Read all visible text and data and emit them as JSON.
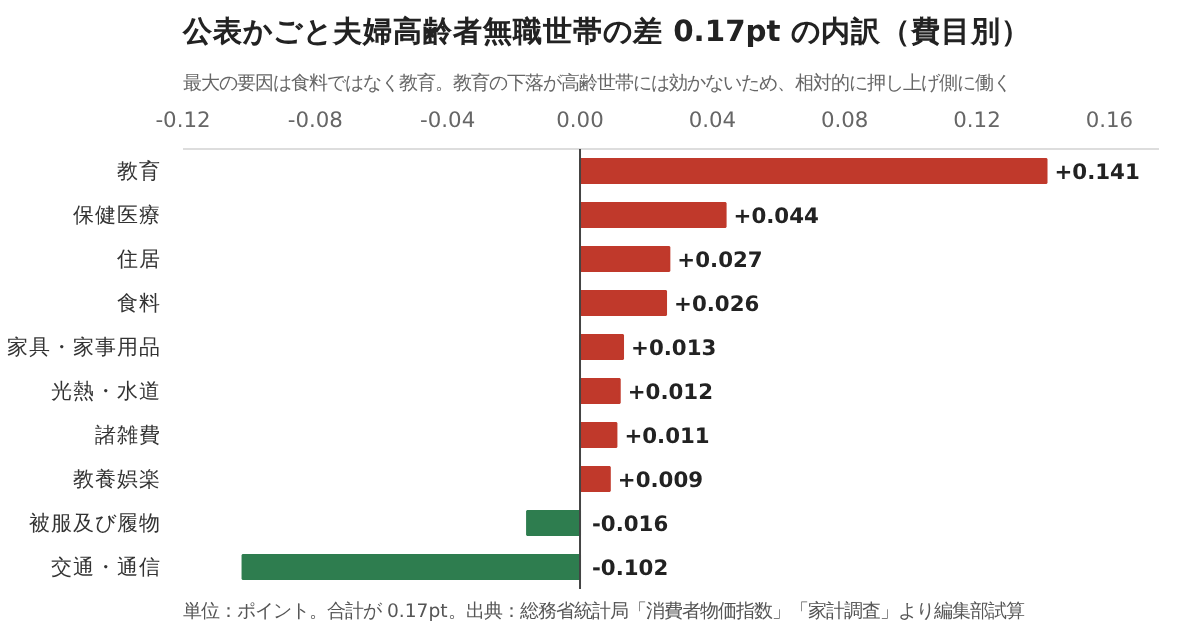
{
  "chart_data": {
    "type": "bar",
    "orientation": "horizontal",
    "title": "公表かごと夫婦高齢者無職世帯の差 0.17pt の内訳（費目別）",
    "subtitle": "最大の要因は食料ではなく教育。教育の下落が高齢世帯には効かないため、相対的に押し上げ側に働く",
    "categories": [
      "教育",
      "保健医療",
      "住居",
      "食料",
      "家具・家事用品",
      "光熱・水道",
      "諸雑費",
      "教養娯楽",
      "被服及び履物",
      "交通・通信"
    ],
    "values": [
      0.141,
      0.044,
      0.027,
      0.026,
      0.013,
      0.012,
      0.011,
      0.009,
      -0.016,
      -0.102
    ],
    "colors": [
      "#c0392b",
      "#c0392b",
      "#c0392b",
      "#c0392b",
      "#c0392b",
      "#c0392b",
      "#c0392b",
      "#c0392b",
      "#2e7d4f",
      "#2e7d4f"
    ],
    "value_labels": [
      "+0.141",
      "+0.044",
      "+0.027",
      "+0.026",
      "+0.013",
      "+0.012",
      "+0.011",
      "+0.009",
      "-0.016",
      "-0.102"
    ],
    "xlim": [
      -0.12,
      0.175
    ],
    "xticks": [
      {
        "value": -0.12,
        "label": "-0.12"
      },
      {
        "value": -0.08,
        "label": "-0.08"
      },
      {
        "value": -0.04,
        "label": "-0.04"
      },
      {
        "value": 0,
        "label": "0.00"
      },
      {
        "value": 0.04,
        "label": "0.04"
      },
      {
        "value": 0.08,
        "label": "0.08"
      },
      0.12,
      0.16
    ],
    "ref_lines": [
      {
        "axis": "x",
        "value": 0,
        "color": "#444444"
      }
    ],
    "grid": false,
    "annotations": [
      "単位：ポイント。合計が 0.17pt。出典：総務省統計局「消費者物価指数」「家計調査」より編集部試算"
    ]
  }
}
